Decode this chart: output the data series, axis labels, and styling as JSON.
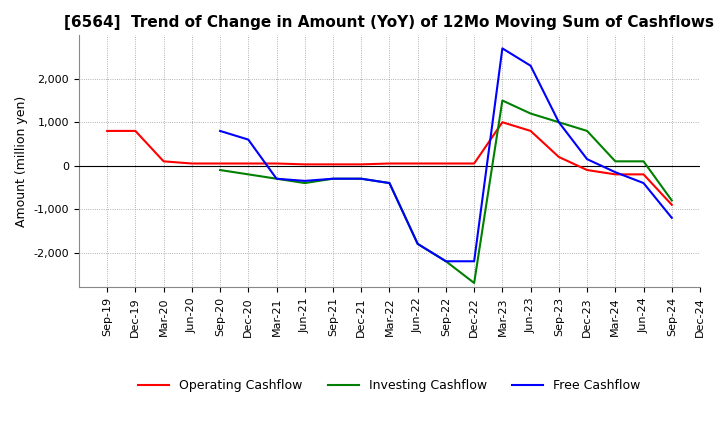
{
  "title": "[6564]  Trend of Change in Amount (YoY) of 12Mo Moving Sum of Cashflows",
  "ylabel": "Amount (million yen)",
  "title_fontsize": 11,
  "label_fontsize": 9,
  "tick_fontsize": 8,
  "ylim": [
    -2800,
    3000
  ],
  "yticks": [
    -2000,
    -1000,
    0,
    1000,
    2000
  ],
  "background_color": "#ffffff",
  "grid_color": "#999999",
  "x_labels": [
    "Sep-19",
    "Dec-19",
    "Mar-20",
    "Jun-20",
    "Sep-20",
    "Dec-20",
    "Mar-21",
    "Jun-21",
    "Sep-21",
    "Dec-21",
    "Mar-22",
    "Jun-22",
    "Sep-22",
    "Dec-22",
    "Mar-23",
    "Jun-23",
    "Sep-23",
    "Dec-23",
    "Mar-24",
    "Jun-24",
    "Sep-24",
    "Dec-24"
  ],
  "operating": [
    800,
    800,
    100,
    50,
    50,
    50,
    50,
    30,
    30,
    30,
    50,
    50,
    50,
    50,
    1000,
    800,
    200,
    -100,
    -200,
    -200,
    -900,
    null
  ],
  "investing": [
    null,
    null,
    null,
    null,
    -100,
    -200,
    -300,
    -400,
    -300,
    -300,
    -400,
    -1800,
    -2200,
    -2700,
    1500,
    1200,
    1000,
    800,
    100,
    100,
    -800,
    null
  ],
  "free": [
    null,
    null,
    null,
    null,
    800,
    600,
    -300,
    -350,
    -300,
    -300,
    -400,
    -1800,
    -2200,
    -2200,
    2700,
    2300,
    1000,
    150,
    -150,
    -400,
    -1200,
    null
  ],
  "op_color": "#ff0000",
  "inv_color": "#008000",
  "free_color": "#0000ff"
}
